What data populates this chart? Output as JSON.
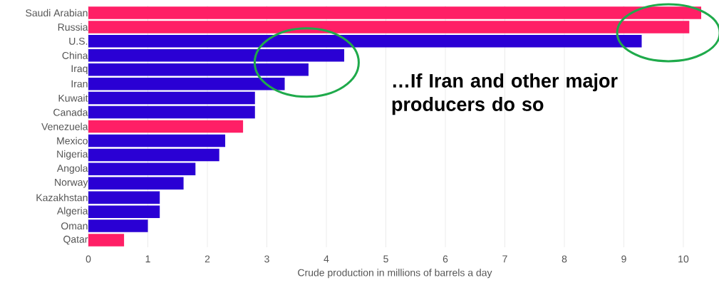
{
  "chart_data": {
    "type": "bar",
    "orientation": "horizontal",
    "categories": [
      "Saudi Arabian",
      "Russia",
      "U.S.",
      "China",
      "Iraq",
      "Iran",
      "Kuwait",
      "Canada",
      "Venezuela",
      "Mexico",
      "Nigeria",
      "Angola",
      "Norway",
      "Kazakhstan",
      "Algeria",
      "Oman",
      "Qatar"
    ],
    "values": [
      10.3,
      10.1,
      9.3,
      4.3,
      3.7,
      3.3,
      2.8,
      2.8,
      2.6,
      2.3,
      2.2,
      1.8,
      1.6,
      1.2,
      1.2,
      1.0,
      0.6
    ],
    "colors": [
      "#ff1f66",
      "#ff1f66",
      "#2a00d4",
      "#2a00d4",
      "#2a00d4",
      "#2a00d4",
      "#2a00d4",
      "#2a00d4",
      "#ff1f66",
      "#2a00d4",
      "#2a00d4",
      "#2a00d4",
      "#2a00d4",
      "#2a00d4",
      "#2a00d4",
      "#2a00d4",
      "#ff1f66"
    ],
    "xlim": [
      0,
      10.3
    ],
    "xticks": [
      0,
      1,
      2,
      3,
      4,
      5,
      6,
      7,
      8,
      9,
      10
    ],
    "grid": "x",
    "xlabel": "Crude production in millions of barrels a day",
    "annotations": [
      "…If Iran and other major producers do so"
    ]
  }
}
